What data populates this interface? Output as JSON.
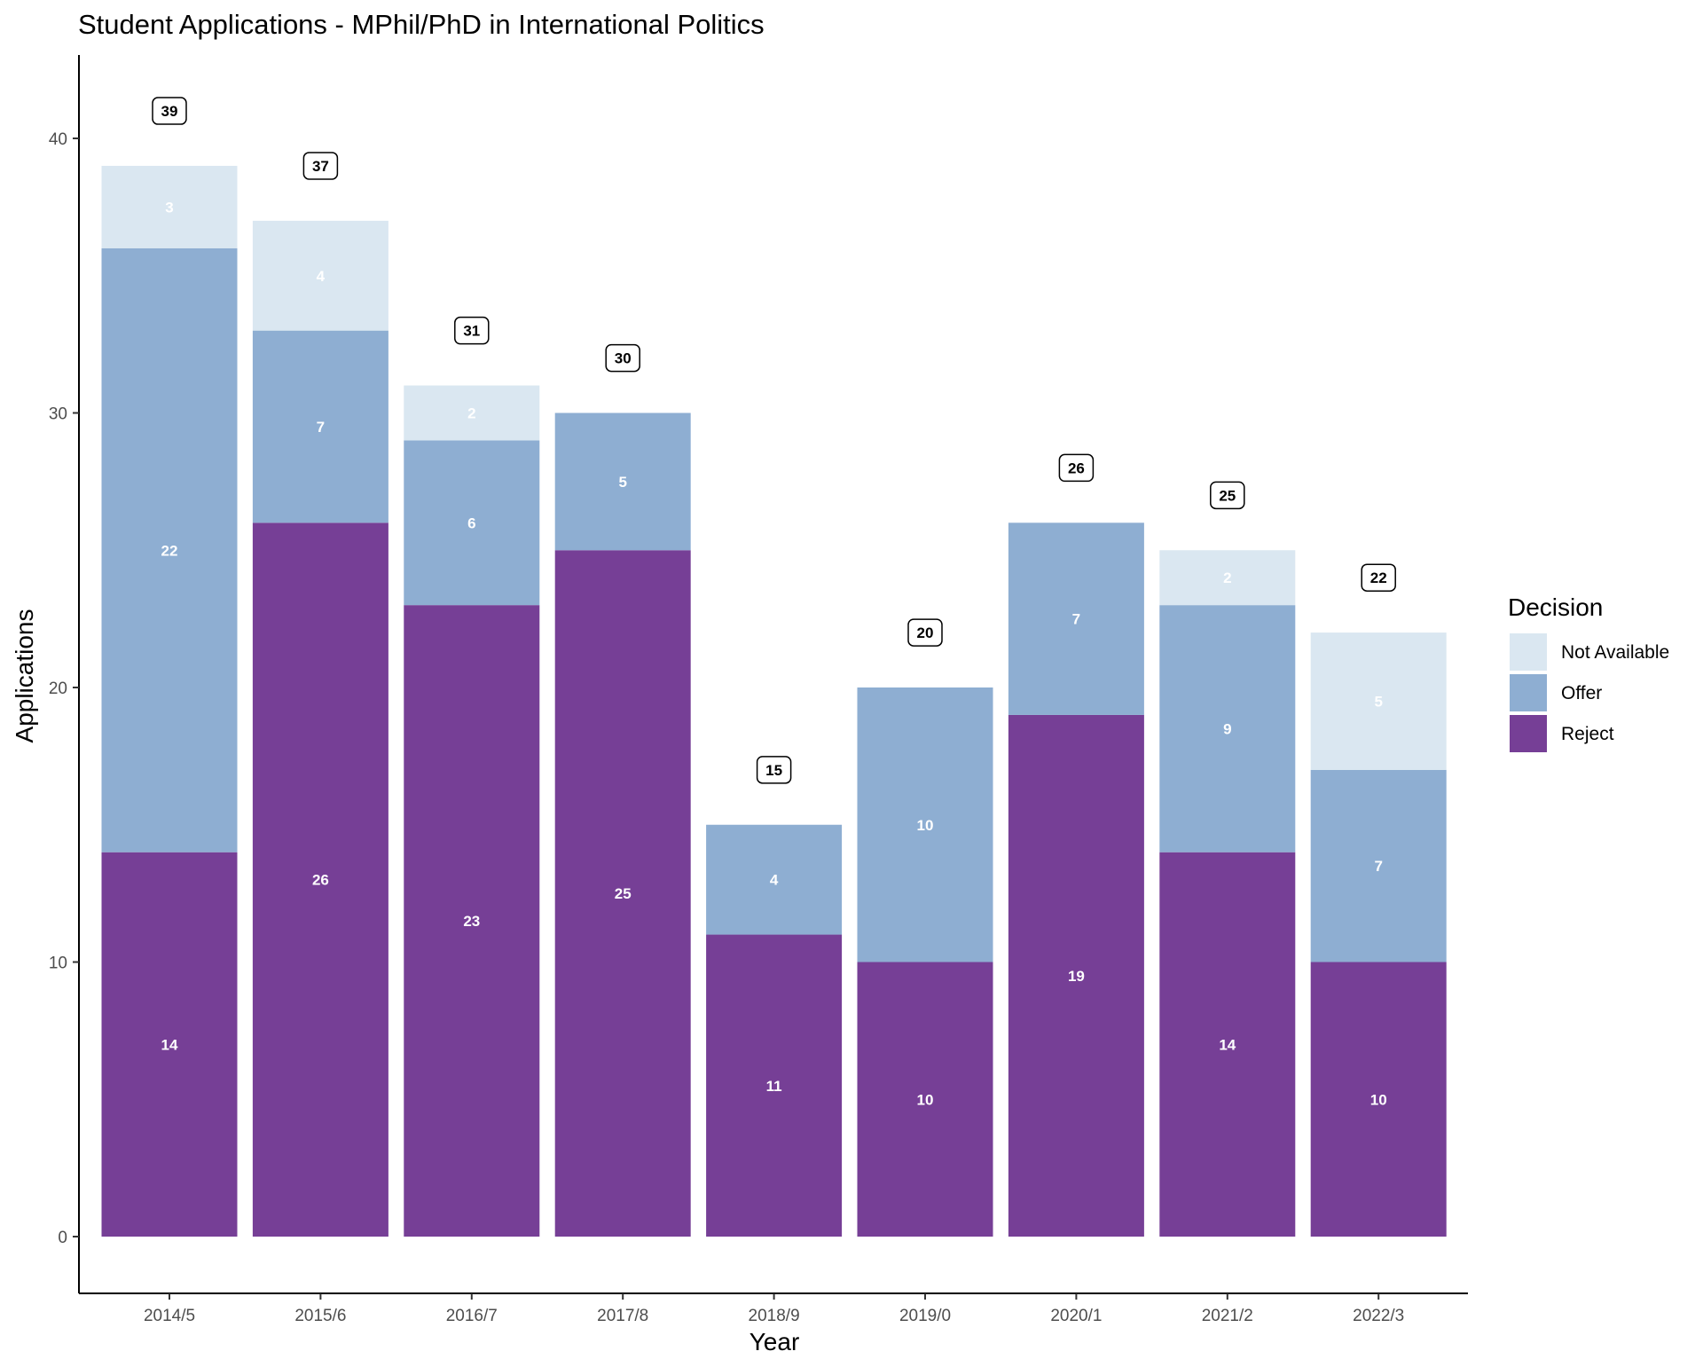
{
  "chart_data": {
    "type": "bar",
    "stacked": true,
    "title": "Student Applications - MPhil/PhD in International Politics",
    "xlabel": "Year",
    "ylabel": "Applications",
    "ylim": [
      0,
      43
    ],
    "yticks": [
      0,
      10,
      20,
      30,
      40
    ],
    "grid": false,
    "legend": {
      "title": "Decision",
      "position": "right"
    },
    "categories": [
      "2014/5",
      "2015/6",
      "2016/7",
      "2017/8",
      "2018/9",
      "2019/0",
      "2020/1",
      "2021/2",
      "2022/3"
    ],
    "series": [
      {
        "name": "Reject",
        "color": "#763f96",
        "values": [
          14,
          26,
          23,
          25,
          11,
          10,
          19,
          14,
          10
        ]
      },
      {
        "name": "Offer",
        "color": "#8eaed2",
        "values": [
          22,
          7,
          6,
          5,
          4,
          10,
          7,
          9,
          7
        ]
      },
      {
        "name": "Not Available",
        "color": "#dae7f1",
        "values": [
          3,
          4,
          2,
          0,
          0,
          0,
          0,
          2,
          5
        ]
      }
    ],
    "legend_order": [
      "Not Available",
      "Offer",
      "Reject"
    ],
    "totals": [
      39,
      37,
      31,
      30,
      15,
      20,
      26,
      25,
      22
    ]
  }
}
